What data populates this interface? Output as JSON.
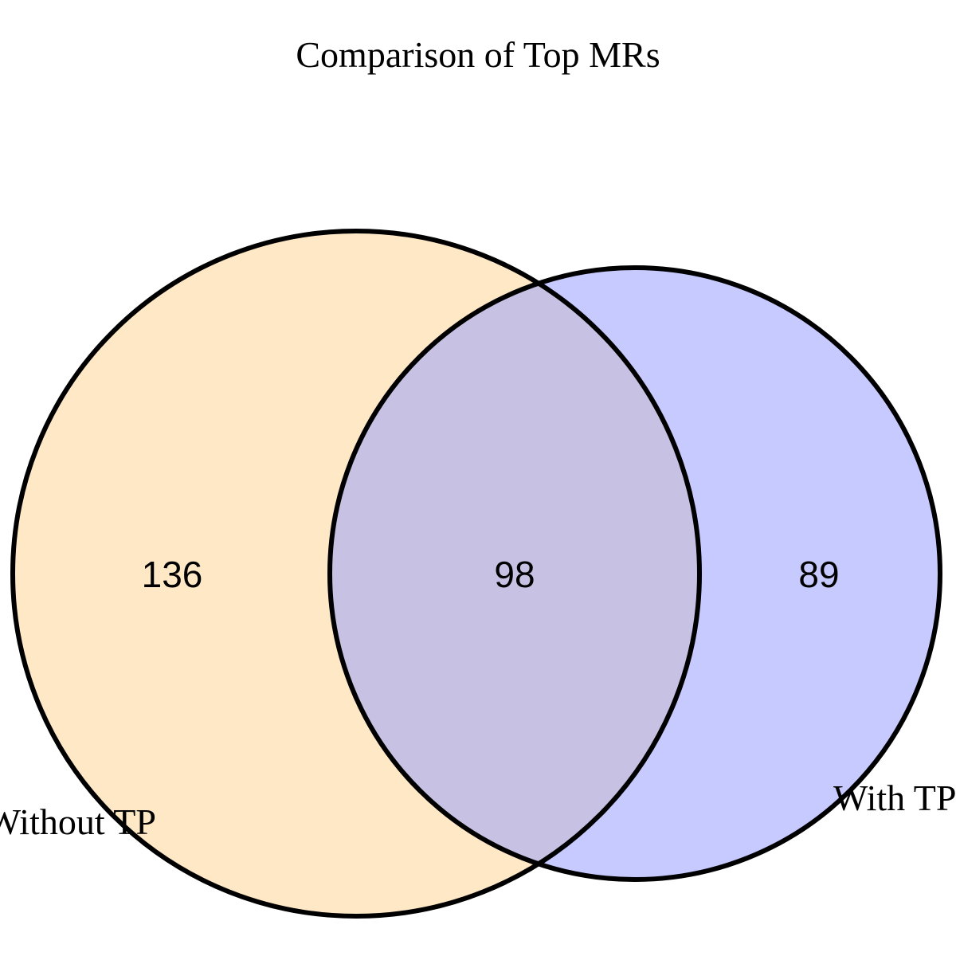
{
  "title": "Comparison of Top MRs",
  "sets": [
    {
      "name": "Without TP",
      "label": "Without TP",
      "color": "#ffe8c6"
    },
    {
      "name": "With TP",
      "label": "With TP",
      "color": "#c7cafe"
    }
  ],
  "counts": {
    "without_tp_only": "136",
    "both": "98",
    "with_tp_only": "89"
  },
  "overlap_color": "#c7c1e3",
  "outline_color": "#000000"
}
